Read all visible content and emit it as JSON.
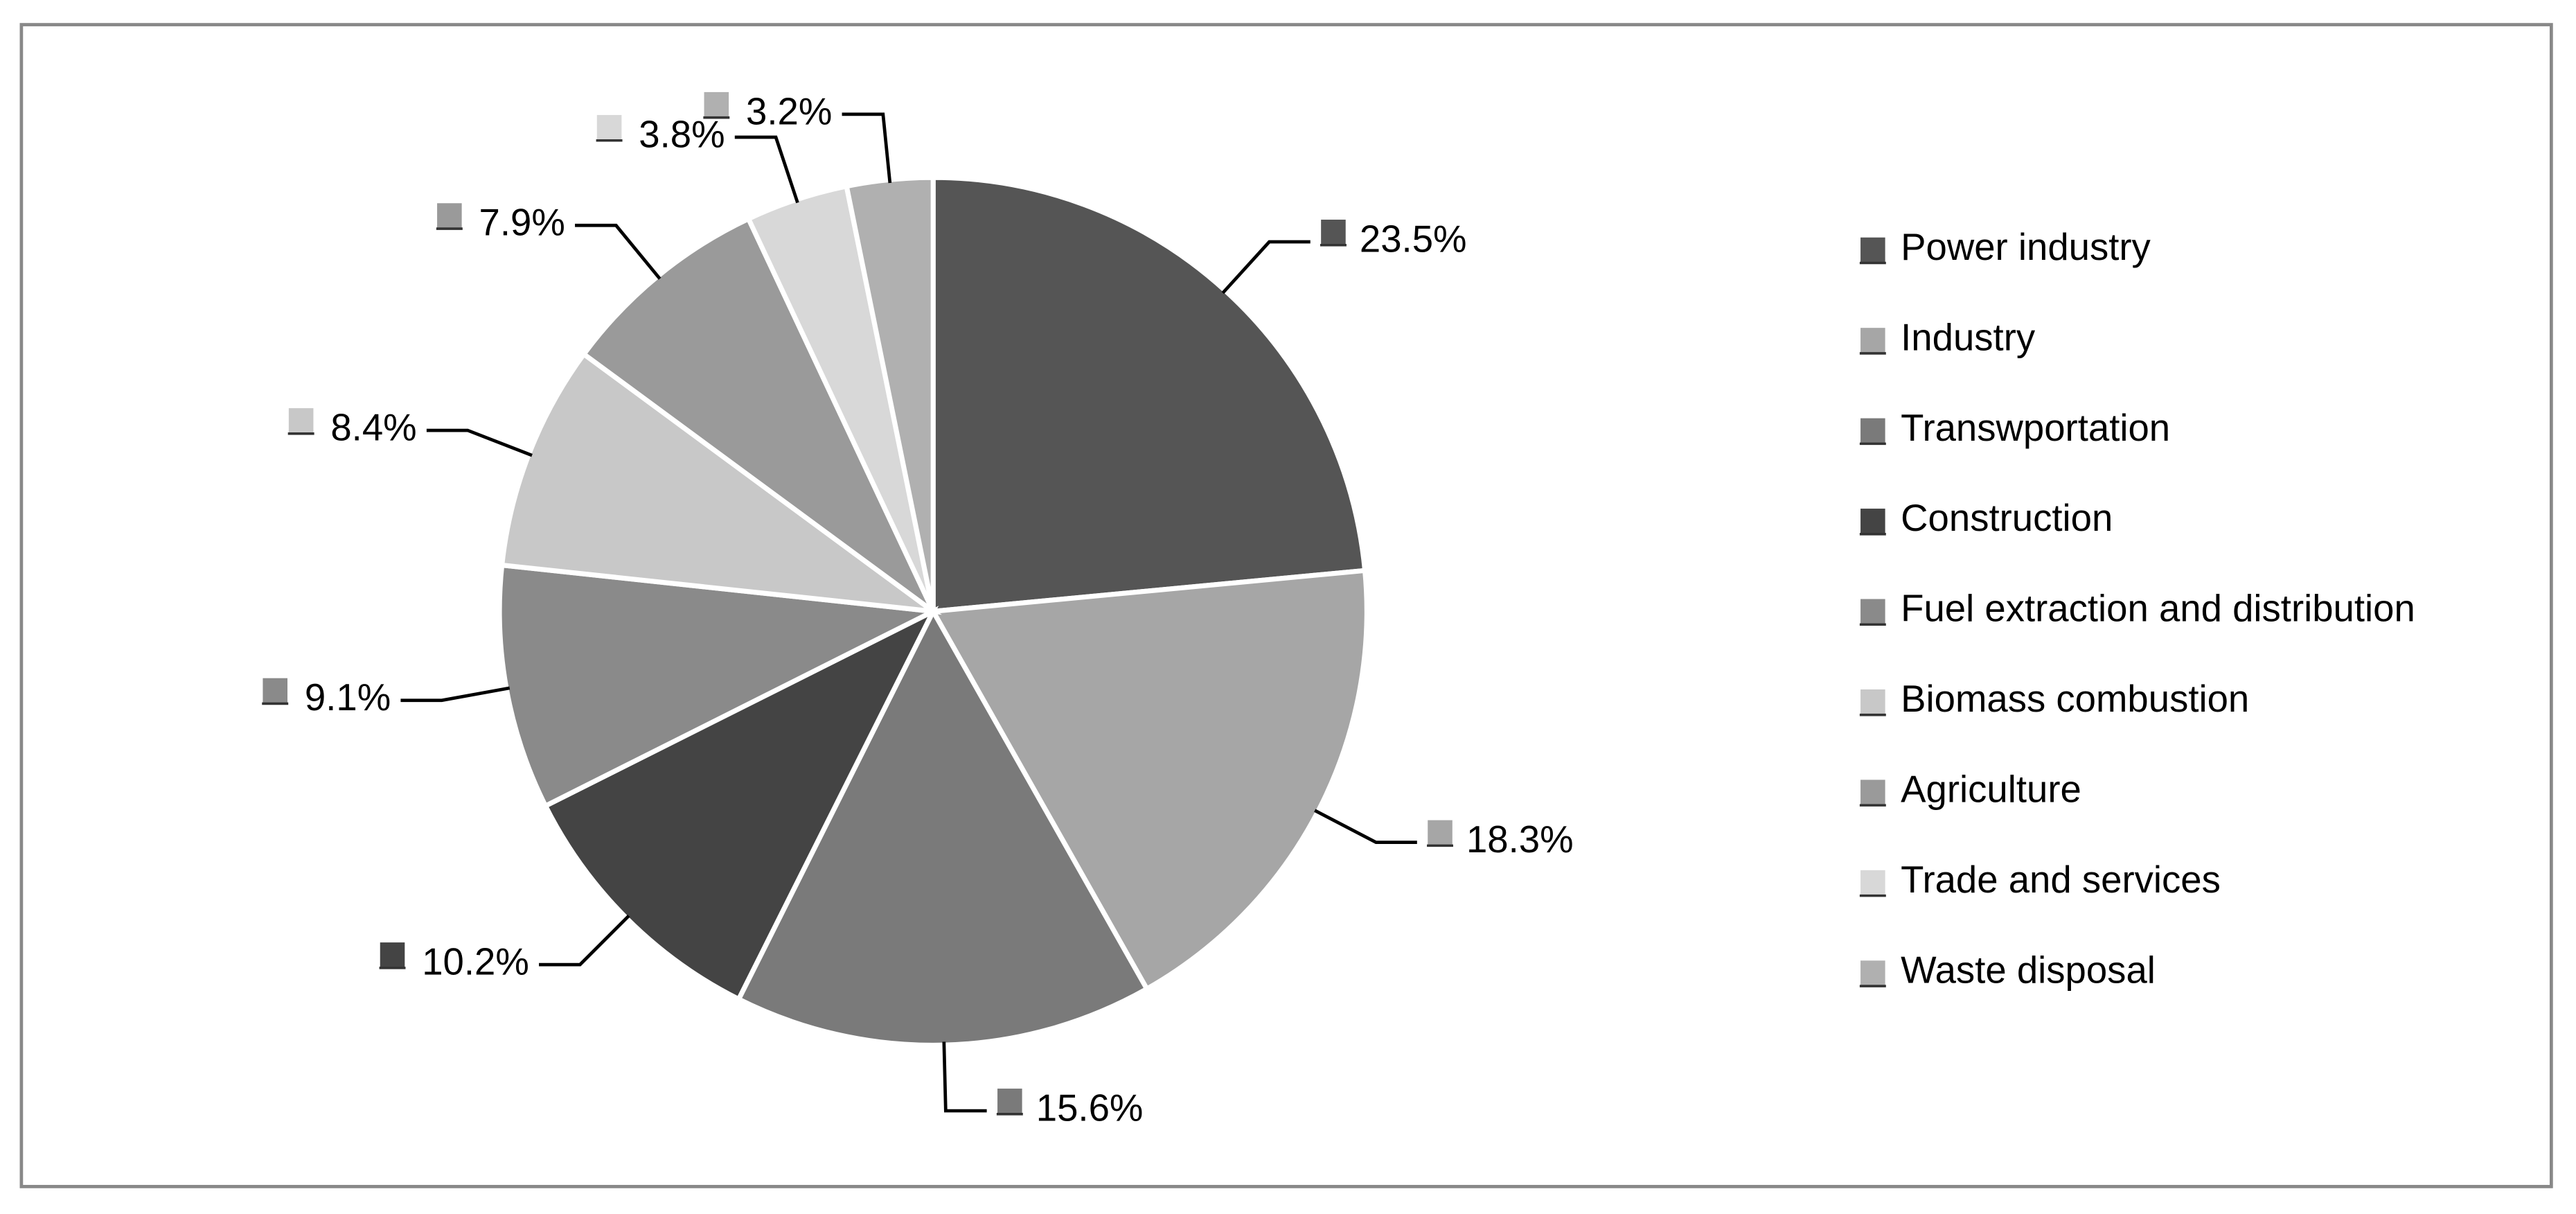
{
  "chart_data": {
    "type": "pie",
    "categories": [
      "Power industry",
      "Industry",
      "Transwportation",
      "Construction",
      "Fuel extraction and distribution",
      "Biomass combustion",
      "Agriculture",
      "Trade and services",
      "Waste disposal"
    ],
    "values": [
      23.5,
      18.3,
      15.6,
      10.2,
      9.1,
      8.4,
      7.9,
      3.8,
      3.2
    ],
    "value_labels": [
      "23.5%",
      "18.3%",
      "15.6%",
      "10.2%",
      "9.1%",
      "8.4%",
      "7.9%",
      "3.8%",
      "3.2%"
    ],
    "colors": [
      "#555555",
      "#a6a6a6",
      "#7a7a7a",
      "#444444",
      "#8a8a8a",
      "#c8c8c8",
      "#9a9a9a",
      "#d8d8d8",
      "#b0b0b0"
    ],
    "legend": "right"
  }
}
